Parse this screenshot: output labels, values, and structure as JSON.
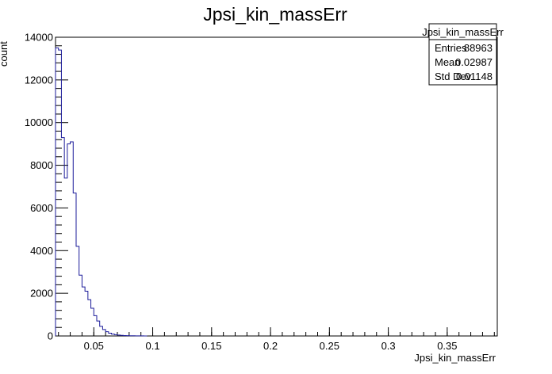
{
  "chart_data": {
    "type": "bar",
    "title": "Jpsi_kin_massErr",
    "xlabel": "Jpsi_kin_massErr",
    "ylabel": "count",
    "xlim": [
      0.0175,
      0.3925
    ],
    "ylim": [
      0,
      14000
    ],
    "x_ticks": [
      0.05,
      0.1,
      0.15,
      0.2,
      0.25,
      0.3,
      0.35
    ],
    "x_tick_labels": [
      "0.05",
      "0.1",
      "0.15",
      "0.2",
      "0.25",
      "0.3",
      "0.35"
    ],
    "y_ticks": [
      0,
      2000,
      4000,
      6000,
      8000,
      10000,
      12000,
      14000
    ],
    "y_tick_labels": [
      "0",
      "2000",
      "4000",
      "6000",
      "8000",
      "10000",
      "12000",
      "14000"
    ],
    "bin_width": 0.0025,
    "bin_start": 0.0175,
    "line_color": "#1a1a99",
    "series": [
      {
        "values": [
          13500,
          13400,
          9300,
          7400,
          9000,
          9100,
          6700,
          4200,
          2850,
          2300,
          2100,
          1700,
          1300,
          950,
          700,
          450,
          300,
          200,
          130,
          90,
          60,
          40,
          30,
          20,
          15,
          10,
          8,
          5,
          4,
          3,
          2
        ]
      }
    ],
    "stats": {
      "title": "Jpsi_kin_massErr",
      "rows": [
        {
          "label": "Entries",
          "value": "88963"
        },
        {
          "label": "Mean",
          "value": "0.02987"
        },
        {
          "label": "Std Dev",
          "value": "0.01148"
        }
      ]
    },
    "grid": false,
    "legend": "top-right"
  }
}
